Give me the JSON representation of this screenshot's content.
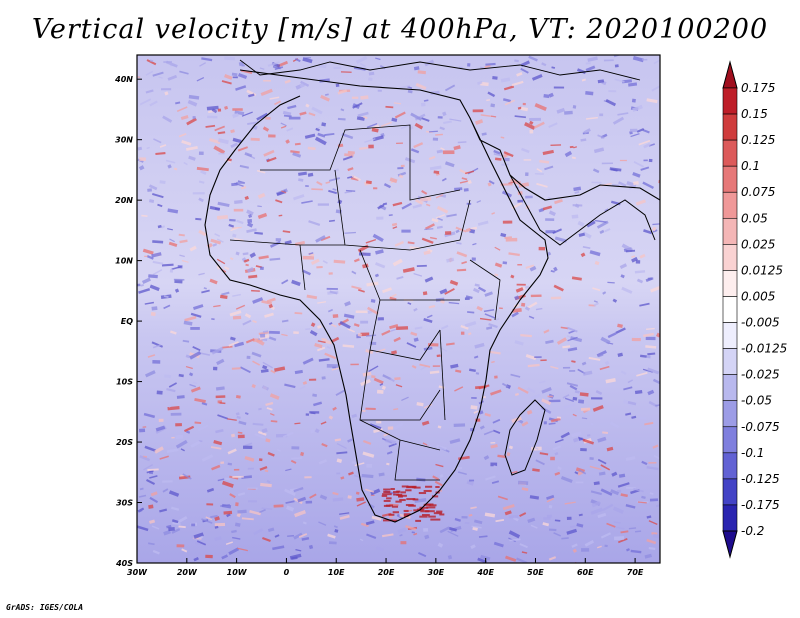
{
  "title": "Vertical velocity [m/s] at 400hPa, VT: 2020100200",
  "footer": "GrADS: IGES/COLA",
  "map": {
    "lon_ticks": [
      "30W",
      "20W",
      "10W",
      "0",
      "10E",
      "20E",
      "30E",
      "40E",
      "50E",
      "60E",
      "70E"
    ],
    "lat_ticks": [
      "40N",
      "30N",
      "20N",
      "10N",
      "EQ",
      "10S",
      "20S",
      "30S",
      "40S"
    ],
    "lon_range": [
      -30,
      75
    ],
    "lat_range": [
      -40,
      44
    ]
  },
  "colorbar": {
    "labels": [
      "0.175",
      "0.15",
      "0.125",
      "0.1",
      "0.075",
      "0.05",
      "0.025",
      "0.0125",
      "0.005",
      "-0.005",
      "-0.0125",
      "-0.025",
      "-0.05",
      "-0.075",
      "-0.1",
      "-0.125",
      "-0.175",
      "-0.2"
    ],
    "colors": [
      "#a00f1e",
      "#be1e28",
      "#cf3c3c",
      "#dc5a5a",
      "#e67878",
      "#ef9898",
      "#f4b6b6",
      "#f9d2d2",
      "#fdeeee",
      "#ffffff",
      "#eeeefd",
      "#d4d4f6",
      "#b8b8ee",
      "#9c9ce6",
      "#7f7fde",
      "#6262d4",
      "#4343c6",
      "#2a24b0",
      "#1e0c8e"
    ]
  }
}
